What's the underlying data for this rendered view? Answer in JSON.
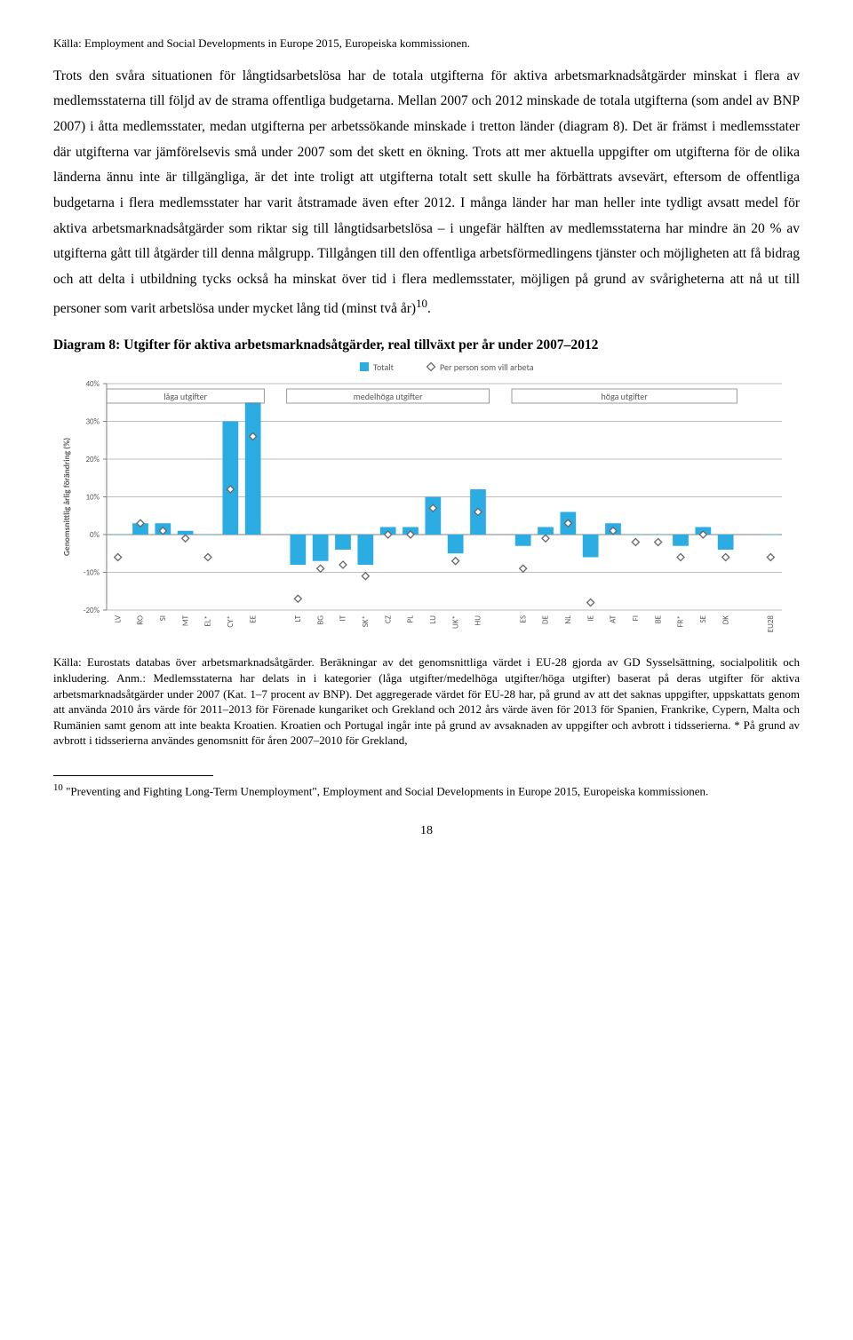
{
  "source_caption": "Källa: Employment and Social Developments in Europe 2015, Europeiska kommissionen.",
  "body_paragraph": "Trots den svåra situationen för långtidsarbetslösa har de totala utgifterna för aktiva arbetsmarknadsåtgärder minskat i flera av medlemsstaterna till följd av de strama offentliga budgetarna. Mellan 2007 och 2012 minskade de totala utgifterna (som andel av BNP 2007) i åtta medlemsstater, medan utgifterna per arbetssökande minskade i tretton länder (diagram 8). Det är främst i medlemsstater där utgifterna var jämförelsevis små under 2007 som det skett en ökning. Trots att mer aktuella uppgifter om utgifterna för de olika länderna ännu inte är tillgängliga, är det inte troligt att utgifterna totalt sett skulle ha förbättrats avsevärt, eftersom de offentliga budgetarna i flera medlemsstater har varit åtstramade även efter 2012. I många länder har man heller inte tydligt avsatt medel för aktiva arbetsmarknadsåtgärder som riktar sig till långtidsarbetslösa – i ungefär hälften av medlemsstaterna har mindre än 20 % av utgifterna gått till åtgärder till denna målgrupp. Tillgången till den offentliga arbetsförmedlingens tjänster och möjligheten att få bidrag och att delta i utbildning tycks också ha minskat över tid i flera medlemsstater, möjligen på grund av svårigheterna att nå ut till personer som varit arbetslösa under mycket lång tid (minst två år)",
  "body_super": "10",
  "body_period": ".",
  "chart_heading": "Diagram 8: Utgifter för aktiva arbetsmarknadsåtgärder, real tillväxt per år under 2007–2012",
  "chart": {
    "type": "bar",
    "legend": {
      "series1": "Totalt",
      "series2": "Per person som vill arbeta"
    },
    "group_labels": {
      "low": "låga utgifter",
      "med": "medelhöga utgifter",
      "high": "höga utgifter"
    },
    "y_axis_label": "Genomsnittlig årlig förändring (%)",
    "y_ticks": [
      "-20%",
      "-10%",
      "0%",
      "10%",
      "20%",
      "30%",
      "40%"
    ],
    "ylim": [
      -20,
      40
    ],
    "categories": [
      "LV",
      "RO",
      "SI",
      "MT",
      "EL*",
      "CY*",
      "EE",
      "LT",
      "BG",
      "IT",
      "SK*",
      "CZ",
      "PL",
      "LU",
      "UK*",
      "HU",
      "ES",
      "DE",
      "NL",
      "IE",
      "AT",
      "FI",
      "BE",
      "FR*",
      "SE",
      "DK",
      "EU28"
    ],
    "bars": [
      0,
      3,
      3,
      1,
      0,
      30,
      35,
      -8,
      -7,
      -4,
      -8,
      2,
      2,
      10,
      -5,
      12,
      -3,
      2,
      6,
      -6,
      3,
      0,
      0,
      -3,
      2,
      -4,
      0
    ],
    "markers": [
      -6,
      3,
      1,
      -1,
      -6,
      12,
      26,
      -17,
      -9,
      -8,
      -11,
      0,
      0,
      7,
      -7,
      6,
      -9,
      -1,
      3,
      -18,
      1,
      -2,
      -2,
      -6,
      0,
      -6,
      -6
    ],
    "bar_color": "#2bace2",
    "marker_color": "#6a6a6a",
    "tick_color": "#bfbfbf",
    "axis_color": "#808080",
    "bg": "#ffffff",
    "font_size_axis": 9,
    "font_size_legend": 10,
    "font_size_group": 10,
    "group_ranges": {
      "low": [
        0,
        6
      ],
      "med": [
        7,
        15
      ],
      "high": [
        16,
        25
      ]
    },
    "eu28_index": 26
  },
  "chart_caption": "Källa: Eurostats databas över arbetsmarknadsåtgärder. Beräkningar av det genomsnittliga värdet i EU-28 gjorda av GD Sysselsättning, socialpolitik och inkludering. Anm.: Medlemsstaterna har delats in i kategorier (låga utgifter/medelhöga utgifter/höga utgifter) baserat på deras utgifter för aktiva arbetsmarknadsåtgärder under 2007 (Kat. 1–7 procent av BNP). Det aggregerade värdet för EU-28 har, på grund av att det saknas uppgifter, uppskattats genom att använda 2010 års värde för 2011–2013 för Förenade kungariket och Grekland och 2012 års värde även för 2013 för Spanien, Frankrike, Cypern, Malta och Rumänien samt genom att inte beakta Kroatien. Kroatien och Portugal ingår inte på grund av avsaknaden av uppgifter och avbrott i tidsserierna. * På grund av avbrott i tidsserierna användes genomsnitt för åren 2007–2010 för Grekland,",
  "footnote": "\"Preventing and Fighting Long-Term Unemployment\", Employment and Social Developments in Europe 2015, Europeiska kommissionen.",
  "footnote_num": "10",
  "page_number": "18"
}
